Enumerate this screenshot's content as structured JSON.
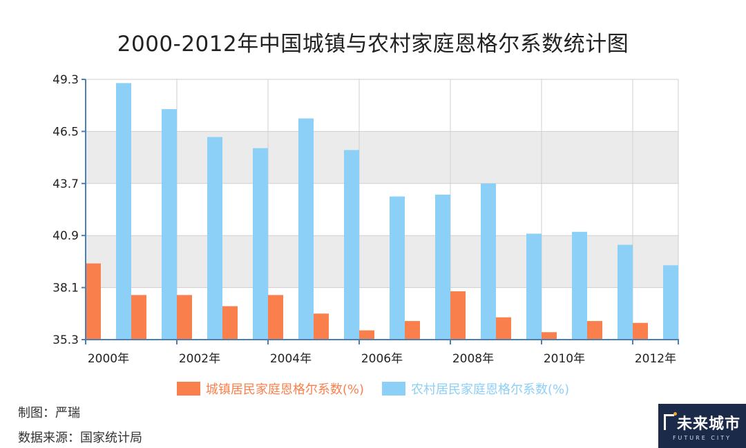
{
  "chart_data": {
    "type": "bar",
    "title": "2000-2012年中国城镇与农村家庭恩格尔系数统计图",
    "categories": [
      "2000年",
      "2001年",
      "2002年",
      "2003年",
      "2004年",
      "2005年",
      "2006年",
      "2007年",
      "2008年",
      "2009年",
      "2010年",
      "2011年",
      "2012年"
    ],
    "x_tick_labels": [
      "2000年",
      "",
      "2002年",
      "",
      "2004年",
      "",
      "2006年",
      "",
      "2008年",
      "",
      "2010年",
      "",
      "2012年"
    ],
    "series": [
      {
        "name": "城镇居民家庭恩格尔系数(%)",
        "color": "#f9804c",
        "values": [
          39.4,
          37.7,
          37.7,
          37.1,
          37.7,
          36.7,
          35.8,
          36.3,
          37.9,
          36.5,
          35.7,
          36.3,
          36.2
        ]
      },
      {
        "name": "农村居民家庭恩格尔系数(%)",
        "color": "#8ccff7",
        "values": [
          49.1,
          47.7,
          46.2,
          45.6,
          47.2,
          45.5,
          43.0,
          43.1,
          43.7,
          41.0,
          41.1,
          40.4,
          39.3
        ]
      }
    ],
    "ylim": [
      35.3,
      49.3
    ],
    "yticks": [
      "35.3",
      "38.1",
      "40.9",
      "43.7",
      "46.5",
      "49.3"
    ],
    "xlabel": "",
    "ylabel": "",
    "grid": true,
    "legend": "bottom"
  },
  "credits": {
    "author": "制图：严瑞",
    "source": "数据来源：国家统计局"
  },
  "logo": {
    "main": "未来城市",
    "sub": "FUTURE CITY"
  },
  "colors": {
    "band_dark": "#ebebeb",
    "band_light": "#ffffff",
    "axis": "#4a7fb5"
  }
}
